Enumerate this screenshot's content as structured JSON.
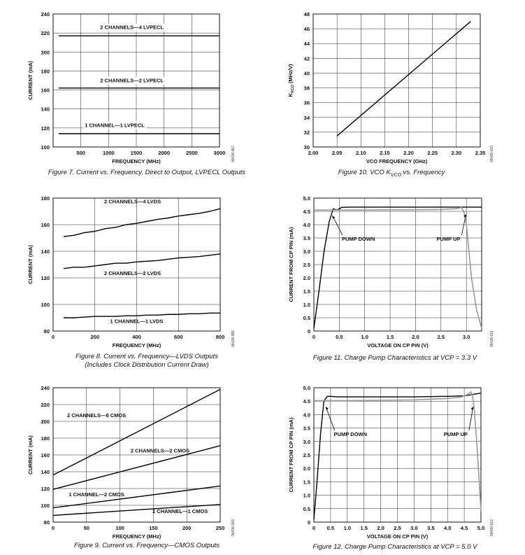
{
  "chart_data": [
    {
      "id": "fig7",
      "type": "line",
      "xlabel": "FREQUENCY (MHz)",
      "ylabel": "CURRENT (mA)",
      "xlim": [
        0,
        3000
      ],
      "ylim": [
        100,
        240
      ],
      "xticks": [
        "500",
        "1000",
        "1500",
        "2000",
        "2500",
        "3000"
      ],
      "xtick_values": [
        500,
        1000,
        1500,
        2000,
        2500,
        3000
      ],
      "yticks": [
        "100",
        "120",
        "140",
        "160",
        "180",
        "200",
        "220",
        "240"
      ],
      "ytick_values": [
        100,
        120,
        140,
        160,
        180,
        200,
        220,
        240
      ],
      "xtick_zero_label": "",
      "grid": true,
      "series": [
        {
          "name": "2 CHANNELS—4 LVPECL",
          "x": [
            100,
            3000
          ],
          "y": [
            217,
            217
          ]
        },
        {
          "name": "2 CHANNELS—2 LVPECL",
          "x": [
            100,
            3000
          ],
          "y": [
            162,
            162
          ]
        },
        {
          "name": "1 CHANNEL—1 LVPECL",
          "x": [
            100,
            3000
          ],
          "y": [
            114,
            114
          ]
        }
      ],
      "caption": "Figure 7. Current vs. Frequency, Direct to Output, LVPECL Outputs",
      "doc_id": "06426-007"
    },
    {
      "id": "fig10",
      "type": "line",
      "xlabel": "VCO FREQUENCY (GHz)",
      "ylabel_main": "K",
      "ylabel_sub": "VCO",
      "ylabel_unit": " (MHz/V)",
      "xlim": [
        2.0,
        2.35
      ],
      "ylim": [
        30,
        48
      ],
      "xticks": [
        "2.00",
        "2.05",
        "2.10",
        "2.15",
        "2.20",
        "2.25",
        "2.30",
        "2.35"
      ],
      "xtick_values": [
        2.0,
        2.05,
        2.1,
        2.15,
        2.2,
        2.25,
        2.3,
        2.35
      ],
      "yticks": [
        "30",
        "32",
        "34",
        "36",
        "38",
        "40",
        "42",
        "44",
        "46",
        "48"
      ],
      "ytick_values": [
        30,
        32,
        34,
        36,
        38,
        40,
        42,
        44,
        46,
        48
      ],
      "grid": true,
      "series": [
        {
          "x": [
            2.05,
            2.33
          ],
          "y": [
            31.5,
            47.0
          ]
        }
      ],
      "caption_parts": [
        "Figure 10. VCO K",
        "VCO",
        " vs. Frequency"
      ],
      "doc_id": "06426-010"
    },
    {
      "id": "fig8",
      "type": "line",
      "xlabel": "FREQUENCY (MHz)",
      "ylabel": "CURRENT (mA)",
      "xlim": [
        0,
        800
      ],
      "ylim": [
        80,
        180
      ],
      "xticks": [
        "0",
        "200",
        "400",
        "600",
        "800"
      ],
      "xtick_values": [
        0,
        200,
        400,
        600,
        800
      ],
      "yticks": [
        "80",
        "100",
        "120",
        "140",
        "160",
        "180"
      ],
      "ytick_values": [
        80,
        100,
        120,
        140,
        160,
        180
      ],
      "grid": true,
      "series": [
        {
          "name": "2 CHANNELS—4 LVDS",
          "x": [
            50,
            100,
            150,
            200,
            250,
            300,
            350,
            400,
            450,
            500,
            550,
            600,
            650,
            700,
            750,
            800
          ],
          "y": [
            151,
            152,
            154,
            155,
            157,
            158,
            160,
            161,
            162.5,
            164,
            165,
            166.5,
            167.5,
            168.5,
            170,
            172
          ]
        },
        {
          "name": "2 CHANNELS—2 LVDS",
          "x": [
            50,
            100,
            150,
            200,
            250,
            300,
            350,
            400,
            450,
            500,
            550,
            600,
            650,
            700,
            750,
            800
          ],
          "y": [
            127,
            128,
            128,
            129,
            130,
            131,
            131,
            132,
            132.5,
            133,
            134,
            135,
            135.5,
            136,
            137,
            138
          ]
        },
        {
          "name": "1 CHANNEL—1 LVDS",
          "x": [
            50,
            100,
            150,
            200,
            250,
            300,
            350,
            400,
            450,
            500,
            550,
            600,
            650,
            700,
            750,
            800
          ],
          "y": [
            90,
            90,
            90.5,
            91,
            91,
            91,
            91.5,
            91.5,
            92,
            92,
            92.5,
            92.5,
            93,
            93,
            93.5,
            93.5
          ]
        }
      ],
      "caption_lines": [
        "Figure 8. Current vs. Frequency—LVDS Outputs",
        "(Includes Clock Distribution Current Draw)"
      ],
      "doc_id": "06426-008"
    },
    {
      "id": "fig11",
      "type": "line",
      "xlabel": "VOLTAGE ON CP PIN (V)",
      "ylabel": "CURRENT FROM CP PIN (mA)",
      "xlim": [
        0,
        3.3
      ],
      "ylim": [
        0,
        5.0
      ],
      "xticks": [
        "0",
        "0.5",
        "1.0",
        "1.5",
        "2.0",
        "2.5",
        "3.0"
      ],
      "xtick_values": [
        0,
        0.5,
        1.0,
        1.5,
        2.0,
        2.5,
        3.0
      ],
      "yticks": [
        "0",
        "0.5",
        "1.0",
        "1.5",
        "2.0",
        "2.5",
        "3.0",
        "3.5",
        "4.0",
        "4.5",
        "5.0"
      ],
      "ytick_values": [
        0,
        0.5,
        1.0,
        1.5,
        2.0,
        2.5,
        3.0,
        3.5,
        4.0,
        4.5,
        5.0
      ],
      "grid": true,
      "series": [
        {
          "name": "PUMP DOWN",
          "x": [
            0,
            0.1,
            0.2,
            0.3,
            0.38,
            0.45,
            0.55,
            0.7,
            1.0,
            2.0,
            3.3
          ],
          "y": [
            0.1,
            1.5,
            3.0,
            4.1,
            4.6,
            4.55,
            4.65,
            4.66,
            4.66,
            4.66,
            4.66
          ]
        },
        {
          "name": "PUMP UP",
          "x": [
            0,
            0.5,
            1.0,
            2.0,
            2.5,
            2.8,
            2.9,
            2.95,
            3.0,
            3.05,
            3.1,
            3.2,
            3.3
          ],
          "y": [
            4.55,
            4.55,
            4.55,
            4.56,
            4.57,
            4.6,
            4.65,
            4.5,
            4.0,
            3.0,
            2.0,
            0.8,
            0.1
          ]
        }
      ],
      "annotations": [
        "PUMP DOWN",
        "PUMP UP"
      ],
      "caption": "Figure 11. Charge Pump Characteristics at VCP = 3.3 V",
      "doc_id": "06426-011"
    },
    {
      "id": "fig9",
      "type": "line",
      "xlabel": "FREQUENCY (MHz)",
      "ylabel": "CURRENT (mA)",
      "xlim": [
        0,
        250
      ],
      "ylim": [
        80,
        240
      ],
      "xticks": [
        "0",
        "50",
        "100",
        "150",
        "200",
        "250"
      ],
      "xtick_values": [
        0,
        50,
        100,
        150,
        200,
        250
      ],
      "yticks": [
        "80",
        "100",
        "120",
        "140",
        "160",
        "180",
        "200",
        "220",
        "240"
      ],
      "ytick_values": [
        80,
        100,
        120,
        140,
        160,
        180,
        200,
        220,
        240
      ],
      "grid": true,
      "series": [
        {
          "name": "2 CHANNELS—8 CMOS",
          "x": [
            0,
            250
          ],
          "y": [
            136,
            238
          ]
        },
        {
          "name": "2 CHANNELS—2 CMOS",
          "x": [
            0,
            250
          ],
          "y": [
            119,
            171
          ]
        },
        {
          "name": "1 CHANNEL—2 CMOS",
          "x": [
            0,
            250
          ],
          "y": [
            97,
            123
          ]
        },
        {
          "name": "1 CHANNEL—1 CMOS",
          "x": [
            0,
            250
          ],
          "y": [
            88,
            101
          ]
        }
      ],
      "caption": "Figure 9. Current vs. Frequency—CMOS Outputs",
      "doc_id": "06426-009"
    },
    {
      "id": "fig12",
      "type": "line",
      "xlabel": "VOLTAGE ON CP PIN (V)",
      "ylabel": "CURRENT FROM CP PIN (mA)",
      "xlim": [
        0,
        5.0
      ],
      "ylim": [
        0,
        5.0
      ],
      "xticks": [
        "0",
        "0.5",
        "1.0",
        "1.5",
        "2.0",
        "2.5",
        "3.0",
        "3.5",
        "4.0",
        "4.5",
        "5.0"
      ],
      "xtick_values": [
        0,
        0.5,
        1.0,
        1.5,
        2.0,
        2.5,
        3.0,
        3.5,
        4.0,
        4.5,
        5.0
      ],
      "yticks": [
        "0",
        "0.5",
        "1.0",
        "1.5",
        "2.0",
        "2.5",
        "3.0",
        "3.5",
        "4.0",
        "4.5",
        "5.0"
      ],
      "ytick_values": [
        0,
        0.5,
        1.0,
        1.5,
        2.0,
        2.5,
        3.0,
        3.5,
        4.0,
        4.5,
        5.0
      ],
      "grid": true,
      "series": [
        {
          "name": "PUMP DOWN",
          "x": [
            0,
            0.1,
            0.2,
            0.3,
            0.4,
            0.5,
            0.7,
            1.0,
            2.0,
            3.0,
            4.0,
            4.5,
            5.0
          ],
          "y": [
            0.1,
            1.6,
            3.3,
            4.5,
            4.68,
            4.68,
            4.66,
            4.66,
            4.66,
            4.66,
            4.68,
            4.7,
            4.8
          ]
        },
        {
          "name": "PUMP UP",
          "x": [
            0,
            0.5,
            1.0,
            2.0,
            3.0,
            4.0,
            4.4,
            4.6,
            4.7,
            4.75,
            4.8,
            4.9,
            5.0
          ],
          "y": [
            4.52,
            4.52,
            4.52,
            4.53,
            4.55,
            4.6,
            4.65,
            4.75,
            4.85,
            4.7,
            4.2,
            2.5,
            0.4
          ]
        }
      ],
      "annotations": [
        "PUMP DOWN",
        "PUMP UP"
      ],
      "caption": "Figure 12. Charge Pump Characteristics at VCP = 5.0 V",
      "doc_id": "06426-012"
    }
  ]
}
